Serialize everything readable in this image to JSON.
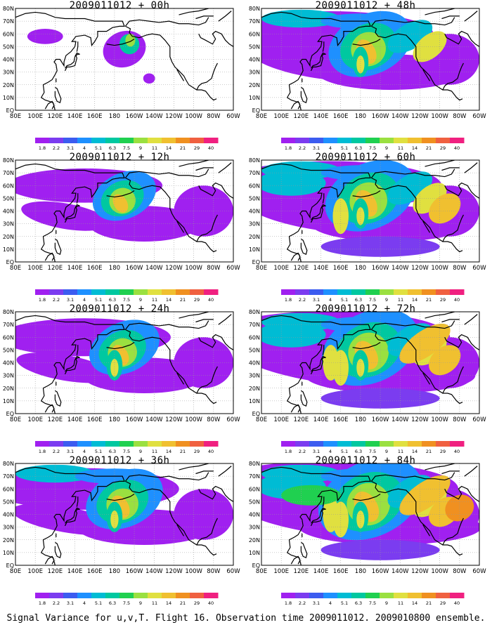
{
  "figure": {
    "caption": "Signal Variance for u,v,T. Flight 16. Observation time 2009011012. 2009010800 ensemble."
  },
  "lat_labels": [
    "EQ",
    "10N",
    "20N",
    "30N",
    "40N",
    "50N",
    "60N",
    "70N",
    "80N"
  ],
  "lon_labels": [
    "80E",
    "100E",
    "120E",
    "140E",
    "160E",
    "180",
    "160W",
    "140W",
    "120W",
    "100W",
    "80W",
    "60W"
  ],
  "colorbar": {
    "labels": [
      "1.8",
      "2.2",
      "3.1",
      "4",
      "5.1",
      "6.3",
      "7.5",
      "9",
      "11",
      "14",
      "21",
      "29",
      "40"
    ],
    "colors": [
      "#a020f0",
      "#7b3cf0",
      "#3c5cf0",
      "#1e90ff",
      "#00bcd4",
      "#00c8a0",
      "#20d050",
      "#9ae040",
      "#e0e040",
      "#f0c030",
      "#f09020",
      "#f06040",
      "#f02080"
    ]
  },
  "panels": [
    {
      "title": "2009011012 + 00h",
      "level": 0
    },
    {
      "title": "2009011012 + 48h",
      "level": 4
    },
    {
      "title": "2009011012 + 12h",
      "level": 1
    },
    {
      "title": "2009011012 + 60h",
      "level": 5
    },
    {
      "title": "2009011012 + 24h",
      "level": 2
    },
    {
      "title": "2009011012 + 72h",
      "level": 6
    },
    {
      "title": "2009011012 + 36h",
      "level": 3
    },
    {
      "title": "2009011012 + 84h",
      "level": 7
    }
  ]
}
